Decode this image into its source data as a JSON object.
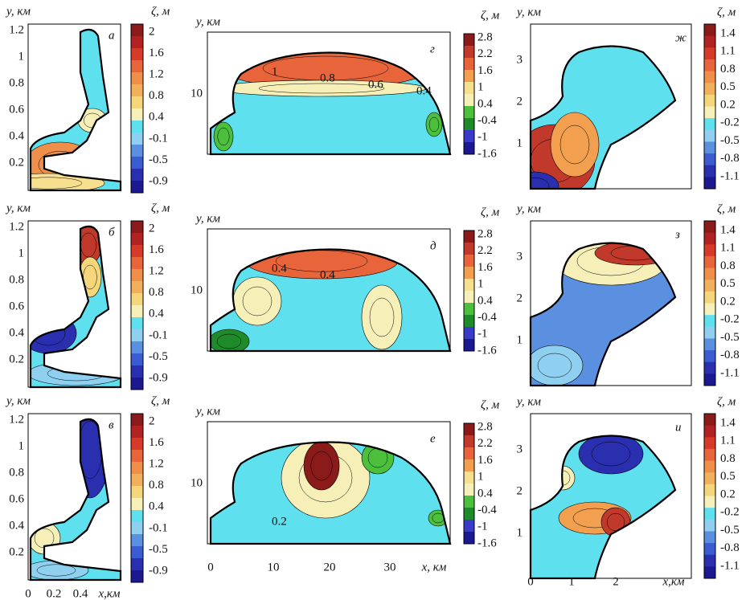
{
  "panels": [
    {
      "letter": "а",
      "y_label": "y, км",
      "colorbar_label": "ζ, м",
      "yticks": [
        "1.2",
        "1",
        "0.8",
        "0.6",
        "0.4",
        "0.2"
      ],
      "colorbar_ticks": [
        "2",
        "1.6",
        "1.2",
        "0.8",
        "0.4",
        "-0.1",
        "-0.5",
        "-0.9"
      ]
    },
    {
      "letter": "б",
      "y_label": "y, км",
      "colorbar_label": "ζ, м",
      "yticks": [
        "1.2",
        "1",
        "0.8",
        "0.6",
        "0.4",
        "0.2"
      ],
      "colorbar_ticks": [
        "2",
        "1.6",
        "1.2",
        "0.8",
        "0.4",
        "-0.1",
        "-0.5",
        "-0.9"
      ]
    },
    {
      "letter": "в",
      "y_label": "y, км",
      "colorbar_label": "ζ, м",
      "yticks": [
        "1.2",
        "1",
        "0.8",
        "0.6",
        "0.4",
        "0.2"
      ],
      "colorbar_ticks": [
        "2",
        "1.6",
        "1.2",
        "0.8",
        "0.4",
        "-0.1",
        "-0.5",
        "-0.9"
      ],
      "xticks": [
        "0",
        "0.2",
        "0.4"
      ],
      "x_label": "x,км"
    },
    {
      "letter": "г",
      "y_label": "y, км",
      "colorbar_label": "ζ, м",
      "yticks": [
        "10"
      ],
      "colorbar_ticks": [
        "2.8",
        "2.2",
        "1.6",
        "1",
        "0.4",
        "-0.4",
        "-1",
        "-1.6"
      ],
      "contour_labels": [
        "1",
        "0.8",
        "0.6",
        "0.4"
      ]
    },
    {
      "letter": "д",
      "y_label": "y, км",
      "colorbar_label": "ζ, м",
      "yticks": [
        "10"
      ],
      "colorbar_ticks": [
        "2.8",
        "2.2",
        "1.6",
        "1",
        "0.4",
        "-0.4",
        "-1",
        "-1.6"
      ],
      "contour_labels": [
        "0.4",
        "0.4"
      ]
    },
    {
      "letter": "е",
      "y_label": "y, км",
      "colorbar_label": "ζ, м",
      "yticks": [
        "10"
      ],
      "colorbar_ticks": [
        "2.8",
        "2.2",
        "1.6",
        "1",
        "0.4",
        "-0.4",
        "-1",
        "-1.6"
      ],
      "contour_labels": [
        "0.2"
      ],
      "xticks": [
        "0",
        "10",
        "20",
        "30"
      ],
      "x_label": "x, км"
    },
    {
      "letter": "ж",
      "y_label": "y, км",
      "colorbar_label": "ζ, м",
      "yticks": [
        "3",
        "2",
        "1"
      ],
      "colorbar_ticks": [
        "1.4",
        "1.1",
        "0.8",
        "0.5",
        "0.2",
        "-0.2",
        "-0.5",
        "-0.8",
        "-1.1"
      ]
    },
    {
      "letter": "з",
      "y_label": "y, км",
      "colorbar_label": "ζ, м",
      "yticks": [
        "3",
        "2",
        "1"
      ],
      "colorbar_ticks": [
        "1.4",
        "1.1",
        "0.8",
        "0.5",
        "0.2",
        "-0.2",
        "-0.5",
        "-0.8",
        "-1.1"
      ]
    },
    {
      "letter": "и",
      "y_label": "y, км",
      "colorbar_label": "ζ, м",
      "yticks": [
        "3",
        "2",
        "1"
      ],
      "colorbar_ticks": [
        "1.4",
        "1.1",
        "0.8",
        "0.5",
        "0.2",
        "-0.2",
        "-0.5",
        "-0.8",
        "-1.1"
      ],
      "xticks": [
        "0",
        "1",
        "2"
      ],
      "x_label": "x,км"
    }
  ]
}
